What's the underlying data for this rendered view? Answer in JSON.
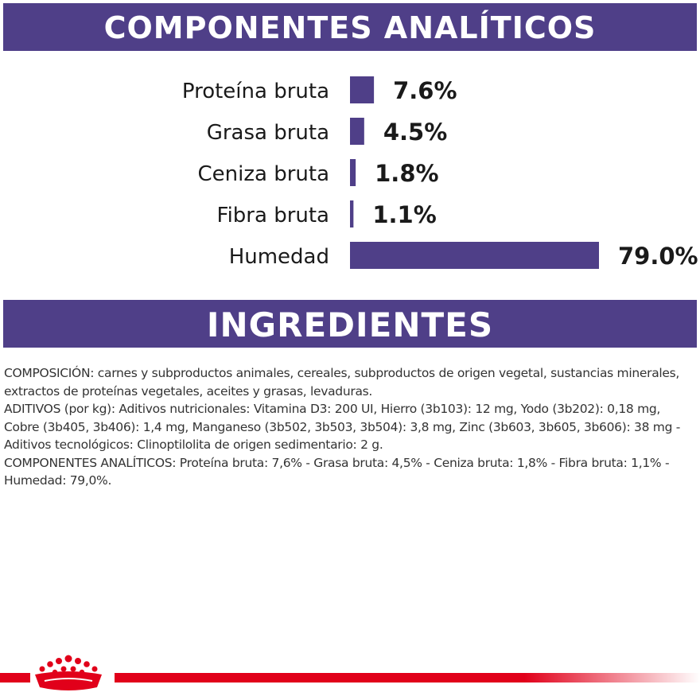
{
  "header": {
    "analytic_title": "COMPONENTES ANALÍTICOS",
    "ingredients_title": "INGREDIENTES"
  },
  "colors": {
    "brand_purple": "#4f3f88",
    "brand_red": "#e1001a",
    "text": "#333333"
  },
  "chart_data": {
    "type": "bar",
    "orientation": "horizontal",
    "categories": [
      "Proteína bruta",
      "Grasa bruta",
      "Ceniza bruta",
      "Fibra bruta",
      "Humedad"
    ],
    "values": [
      7.6,
      4.5,
      1.8,
      1.1,
      79.0
    ],
    "value_labels": [
      "7.6%",
      "4.5%",
      "1.8%",
      "1.1%",
      "79.0%"
    ],
    "unit": "%",
    "xlim": [
      0,
      79.0
    ],
    "grid": false,
    "bar_color": "#4f3f88"
  },
  "ingredients": {
    "paragraphs": [
      "COMPOSICIÓN: carnes y subproductos animales, cereales, subproductos de origen vegetal, sustancias minerales, extractos de proteínas vegetales, aceites y grasas, levaduras.",
      "ADITIVOS (por kg): Aditivos nutricionales: Vitamina D3: 200 UI, Hierro (3b103): 12 mg, Yodo (3b202): 0,18 mg, Cobre (3b405, 3b406): 1,4 mg, Manganeso (3b502, 3b503, 3b504): 3,8 mg, Zinc (3b603, 3b605, 3b606): 38 mg - Aditivos tecnológicos: Clinoptilolita de origen sedimentario: 2 g.",
      "COMPONENTES ANALÍTICOS: Proteína bruta: 7,6% - Grasa bruta: 4,5% - Ceniza bruta: 1,8% - Fibra bruta: 1,1% - Humedad: 79,0%."
    ]
  },
  "footer": {
    "logo_icon": "royal-crown-icon"
  }
}
